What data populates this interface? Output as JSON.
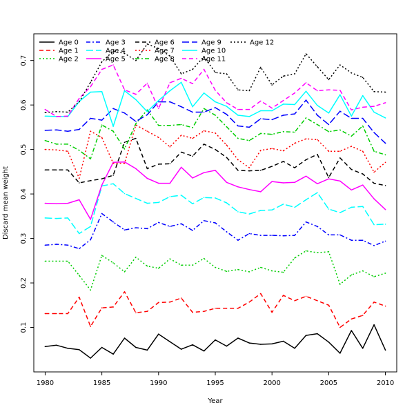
{
  "chart_data": {
    "type": "line",
    "xlabel": "Year",
    "ylabel": "Discard mean weight",
    "xlim": [
      1979,
      2011
    ],
    "ylim": [
      0.0,
      0.76
    ],
    "xticks": [
      1980,
      1985,
      1990,
      1995,
      2000,
      2005,
      2010
    ],
    "yticks": [
      0.1,
      0.2,
      0.3,
      0.4,
      0.5,
      0.6,
      0.7
    ],
    "grid": false,
    "legend_position": "top-left",
    "x": [
      1980,
      1981,
      1982,
      1983,
      1984,
      1985,
      1986,
      1987,
      1988,
      1989,
      1990,
      1991,
      1992,
      1993,
      1994,
      1995,
      1996,
      1997,
      1998,
      1999,
      2000,
      2001,
      2002,
      2003,
      2004,
      2005,
      2006,
      2007,
      2008,
      2009,
      2010
    ],
    "series": [
      {
        "name": "Age 0",
        "color": "#000000",
        "dash": "solid",
        "values": [
          0.057,
          0.06,
          0.053,
          0.05,
          0.031,
          0.055,
          0.04,
          0.076,
          0.055,
          0.049,
          0.085,
          0.068,
          0.051,
          0.061,
          0.047,
          0.072,
          0.058,
          0.076,
          0.065,
          0.062,
          0.063,
          0.069,
          0.053,
          0.082,
          0.086,
          0.067,
          0.042,
          0.093,
          0.053,
          0.106,
          0.049
        ]
      },
      {
        "name": "Age 1",
        "color": "#ff0000",
        "dash": "dashed",
        "values": [
          0.131,
          0.131,
          0.131,
          0.168,
          0.102,
          0.144,
          0.146,
          0.18,
          0.133,
          0.136,
          0.156,
          0.157,
          0.166,
          0.134,
          0.136,
          0.143,
          0.143,
          0.143,
          0.157,
          0.176,
          0.134,
          0.172,
          0.16,
          0.17,
          0.16,
          0.15,
          0.1,
          0.119,
          0.127,
          0.157,
          0.148
        ]
      },
      {
        "name": "Age 2",
        "color": "#00cd00",
        "dash": "dotted",
        "values": [
          0.249,
          0.249,
          0.249,
          0.217,
          0.184,
          0.262,
          0.245,
          0.225,
          0.258,
          0.238,
          0.233,
          0.254,
          0.24,
          0.24,
          0.255,
          0.235,
          0.226,
          0.23,
          0.225,
          0.235,
          0.227,
          0.224,
          0.256,
          0.272,
          0.268,
          0.27,
          0.197,
          0.218,
          0.227,
          0.214,
          0.222
        ]
      },
      {
        "name": "Age 3",
        "color": "#0000ff",
        "dash": "dashdot",
        "values": [
          0.285,
          0.287,
          0.285,
          0.277,
          0.297,
          0.356,
          0.337,
          0.319,
          0.324,
          0.322,
          0.336,
          0.327,
          0.333,
          0.318,
          0.34,
          0.335,
          0.315,
          0.296,
          0.311,
          0.307,
          0.307,
          0.306,
          0.307,
          0.337,
          0.327,
          0.308,
          0.308,
          0.296,
          0.296,
          0.284,
          0.294
        ]
      },
      {
        "name": "Age 4",
        "color": "#00ffff",
        "dash": "longdash",
        "values": [
          0.346,
          0.345,
          0.346,
          0.311,
          0.327,
          0.418,
          0.423,
          0.401,
          0.39,
          0.379,
          0.381,
          0.394,
          0.397,
          0.378,
          0.392,
          0.391,
          0.38,
          0.36,
          0.355,
          0.363,
          0.364,
          0.377,
          0.37,
          0.387,
          0.403,
          0.366,
          0.358,
          0.37,
          0.372,
          0.331,
          0.332
        ]
      },
      {
        "name": "Age 5",
        "color": "#ff00ff",
        "dash": "solid",
        "values": [
          0.379,
          0.378,
          0.379,
          0.387,
          0.343,
          0.42,
          0.471,
          0.472,
          0.457,
          0.435,
          0.424,
          0.424,
          0.46,
          0.436,
          0.448,
          0.453,
          0.426,
          0.416,
          0.41,
          0.405,
          0.428,
          0.425,
          0.426,
          0.44,
          0.423,
          0.434,
          0.429,
          0.409,
          0.42,
          0.389,
          0.365
        ]
      },
      {
        "name": "Age 6",
        "color": "#000000",
        "dash": "dashed",
        "values": [
          0.454,
          0.454,
          0.454,
          0.425,
          0.43,
          0.434,
          0.442,
          0.516,
          0.525,
          0.457,
          0.467,
          0.468,
          0.494,
          0.485,
          0.512,
          0.5,
          0.482,
          0.453,
          0.452,
          0.453,
          0.462,
          0.473,
          0.459,
          0.477,
          0.489,
          0.437,
          0.481,
          0.455,
          0.445,
          0.424,
          0.419
        ]
      },
      {
        "name": "Age 7",
        "color": "#ff0000",
        "dash": "dotted",
        "values": [
          0.5,
          0.499,
          0.496,
          0.435,
          0.541,
          0.527,
          0.469,
          0.469,
          0.555,
          0.541,
          0.527,
          0.506,
          0.532,
          0.525,
          0.542,
          0.537,
          0.51,
          0.477,
          0.459,
          0.498,
          0.502,
          0.497,
          0.514,
          0.524,
          0.522,
          0.496,
          0.496,
          0.507,
          0.496,
          0.449,
          0.471
        ]
      },
      {
        "name": "Age 8",
        "color": "#00cd00",
        "dash": "dashdot",
        "values": [
          0.52,
          0.512,
          0.512,
          0.498,
          0.479,
          0.555,
          0.541,
          0.501,
          0.558,
          0.589,
          0.554,
          0.554,
          0.556,
          0.549,
          0.592,
          0.577,
          0.551,
          0.525,
          0.52,
          0.536,
          0.534,
          0.54,
          0.539,
          0.571,
          0.556,
          0.54,
          0.544,
          0.53,
          0.553,
          0.496,
          0.488
        ]
      },
      {
        "name": "Age 9",
        "color": "#0000ff",
        "dash": "longdash",
        "values": [
          0.543,
          0.544,
          0.541,
          0.545,
          0.57,
          0.566,
          0.592,
          0.582,
          0.563,
          0.578,
          0.607,
          0.607,
          0.596,
          0.584,
          0.584,
          0.594,
          0.579,
          0.553,
          0.55,
          0.569,
          0.567,
          0.577,
          0.58,
          0.611,
          0.577,
          0.556,
          0.586,
          0.57,
          0.57,
          0.538,
          0.514
        ]
      },
      {
        "name": "Age 10",
        "color": "#00ffff",
        "dash": "solid",
        "values": [
          0.575,
          0.574,
          0.574,
          0.608,
          0.629,
          0.63,
          0.552,
          0.632,
          0.612,
          0.585,
          0.61,
          0.632,
          0.651,
          0.596,
          0.627,
          0.607,
          0.597,
          0.577,
          0.574,
          0.587,
          0.587,
          0.602,
          0.601,
          0.631,
          0.599,
          0.582,
          0.623,
          0.575,
          0.621,
          0.584,
          0.571
        ]
      },
      {
        "name": "Age 11",
        "color": "#ff00ff",
        "dash": "dashed",
        "values": [
          0.59,
          0.574,
          0.575,
          0.615,
          0.641,
          0.68,
          0.69,
          0.634,
          0.624,
          0.649,
          0.592,
          0.65,
          0.66,
          0.648,
          0.68,
          0.633,
          0.605,
          0.59,
          0.59,
          0.609,
          0.593,
          0.61,
          0.627,
          0.65,
          0.632,
          0.634,
          0.633,
          0.589,
          0.595,
          0.597,
          0.605
        ]
      },
      {
        "name": "Age 12",
        "color": "#000000",
        "dash": "dotted",
        "values": [
          0.583,
          0.585,
          0.584,
          0.607,
          0.651,
          0.697,
          0.721,
          0.716,
          0.7,
          0.737,
          0.727,
          0.71,
          0.67,
          0.68,
          0.709,
          0.673,
          0.67,
          0.634,
          0.632,
          0.685,
          0.645,
          0.665,
          0.67,
          0.715,
          0.686,
          0.657,
          0.69,
          0.672,
          0.662,
          0.63,
          0.629
        ]
      }
    ]
  }
}
